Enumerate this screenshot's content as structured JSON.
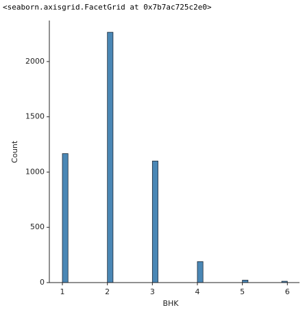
{
  "header": {
    "text": "<seaborn.axisgrid.FacetGrid at 0x7b7ac725c2e0>"
  },
  "chart_data": {
    "type": "histogram",
    "xlabel": "BHK",
    "ylabel": "Count",
    "bins": [
      1,
      1.125,
      1.25,
      1.375,
      1.5,
      1.625,
      1.75,
      1.875,
      2,
      2.125,
      2.25,
      2.375,
      2.5,
      2.625,
      2.75,
      2.875,
      3,
      3.125,
      3.25,
      3.375,
      3.5,
      3.625,
      3.75,
      3.875,
      4,
      4.125,
      4.25,
      4.375,
      4.5,
      4.625,
      4.75,
      4.875,
      5,
      5.125,
      5.25,
      5.375,
      5.5,
      5.625,
      5.75,
      5.875,
      6
    ],
    "values": [
      1167,
      0,
      0,
      0,
      0,
      0,
      0,
      0,
      2265,
      0,
      0,
      0,
      0,
      0,
      0,
      0,
      1100,
      0,
      0,
      0,
      0,
      0,
      0,
      0,
      190,
      0,
      0,
      0,
      0,
      0,
      0,
      0,
      22,
      0,
      0,
      0,
      0,
      0,
      0,
      12
    ],
    "color": "#4a87b5",
    "xlim": [
      0.71,
      6.27
    ],
    "xticks": [
      1,
      2,
      3,
      4,
      5,
      6
    ],
    "ylim": [
      0,
      2371
    ],
    "yticks": [
      0,
      500,
      1000,
      1500,
      2000
    ]
  }
}
